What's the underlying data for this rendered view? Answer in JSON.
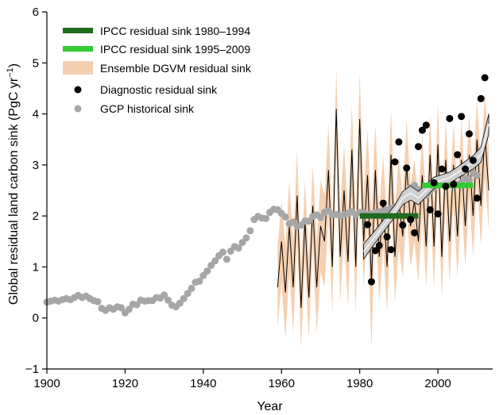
{
  "chart_data": {
    "type": "line",
    "xlabel": "Year",
    "ylabel": "Global residual land carbon sink (PgC yr",
    "ylabel_sup": "−1",
    "ylabel_suffix": ")",
    "xlim": [
      1900,
      2014
    ],
    "ylim": [
      -1,
      6
    ],
    "xticks": [
      1900,
      1920,
      1940,
      1960,
      1980,
      2000
    ],
    "yticks": [
      -1,
      0,
      1,
      2,
      3,
      4,
      5,
      6
    ],
    "ytick_labels": [
      "−1",
      "0",
      "1",
      "2",
      "3",
      "4",
      "5",
      "6"
    ],
    "legend_position": "top-left",
    "colors": {
      "ipcc_1980": "#1f6b1f",
      "ipcc_1995": "#33cc33",
      "ensemble_band": "#f5d0b0",
      "ensemble_line": "#000000",
      "diagnostic": "#000000",
      "gcp": "#a6a6a6",
      "spline_band": "#cfcfcf",
      "spline_line": "#ffffff"
    },
    "legend": [
      {
        "key": "ipcc_1980",
        "label": "IPCC residual sink 1980–1994"
      },
      {
        "key": "ipcc_1995",
        "label": "IPCC residual sink 1995–2009"
      },
      {
        "key": "ensemble",
        "label": "Ensemble DGVM residual sink"
      },
      {
        "key": "diagnostic",
        "label": "Diagnostic residual sink"
      },
      {
        "key": "gcp",
        "label": "GCP historical sink"
      }
    ],
    "ipcc_segments": [
      {
        "key": "ipcc_1980",
        "x": [
          1980,
          1995
        ],
        "y": 2.0
      },
      {
        "key": "ipcc_1995",
        "x": [
          1996,
          2009
        ],
        "y": 2.6
      }
    ],
    "gcp_historical": {
      "x": [
        1900,
        1901,
        1902,
        1903,
        1904,
        1905,
        1906,
        1907,
        1908,
        1909,
        1910,
        1911,
        1912,
        1913,
        1914,
        1915,
        1916,
        1917,
        1918,
        1919,
        1920,
        1921,
        1922,
        1923,
        1924,
        1925,
        1926,
        1927,
        1928,
        1929,
        1930,
        1931,
        1932,
        1933,
        1934,
        1935,
        1936,
        1937,
        1938,
        1939,
        1940,
        1941,
        1942,
        1943,
        1944,
        1945,
        1946,
        1947,
        1948,
        1949,
        1950,
        1951,
        1952,
        1953,
        1954,
        1955,
        1956,
        1957,
        1958,
        1959,
        1960,
        1961,
        1962,
        1963,
        1964,
        1965,
        1966,
        1967,
        1968,
        1969,
        1970,
        1971,
        1972,
        1973,
        1974,
        1975,
        1976,
        1977,
        1978,
        1979,
        1980,
        1981,
        1982,
        1983,
        1984,
        1985,
        1986,
        1987,
        1988,
        1989,
        1990,
        1991,
        1992,
        1993,
        1994,
        1995,
        1996,
        1997,
        1998,
        1999,
        2000,
        2001,
        2002,
        2003,
        2004,
        2005,
        2006,
        2007,
        2008,
        2009,
        2010
      ],
      "y": [
        0.31,
        0.33,
        0.35,
        0.33,
        0.36,
        0.38,
        0.36,
        0.4,
        0.44,
        0.4,
        0.43,
        0.38,
        0.34,
        0.32,
        0.19,
        0.15,
        0.2,
        0.17,
        0.22,
        0.2,
        0.1,
        0.17,
        0.27,
        0.26,
        0.35,
        0.33,
        0.34,
        0.34,
        0.4,
        0.39,
        0.45,
        0.35,
        0.25,
        0.22,
        0.29,
        0.38,
        0.48,
        0.58,
        0.7,
        0.72,
        0.83,
        0.92,
        1.03,
        1.12,
        1.22,
        1.29,
        1.15,
        1.31,
        1.4,
        1.37,
        1.48,
        1.57,
        1.71,
        1.93,
        1.99,
        1.96,
        1.95,
        2.07,
        2.13,
        2.12,
        2.05,
        1.98,
        1.85,
        1.88,
        1.8,
        1.82,
        1.9,
        1.9,
        1.99,
        2.02,
        1.97,
        2.07,
        2.1,
        2.02,
        2.03,
        2.0,
        2.03,
        2.05,
        2.08,
        2.03,
        2.07,
        2.06,
        2.03,
        2.04,
        2.06,
        2.08,
        2.1,
        2.12,
        2.15,
        2.18,
        2.22,
        2.3,
        2.45,
        2.55,
        2.6,
        2.52,
        2.45,
        2.4,
        2.48,
        2.55,
        2.62,
        2.63,
        2.6,
        2.7,
        2.6,
        2.62,
        2.65,
        2.74,
        2.7,
        2.84,
        2.8
      ]
    },
    "ensemble_dgvm": {
      "x": [
        1959,
        1960,
        1961,
        1962,
        1963,
        1964,
        1965,
        1966,
        1967,
        1968,
        1969,
        1970,
        1971,
        1972,
        1973,
        1974,
        1975,
        1976,
        1977,
        1978,
        1979,
        1980,
        1981,
        1982,
        1983,
        1984,
        1985,
        1986,
        1987,
        1988,
        1989,
        1990,
        1991,
        1992,
        1993,
        1994,
        1995,
        1996,
        1997,
        1998,
        1999,
        2000,
        2001,
        2002,
        2003,
        2004,
        2005,
        2006,
        2007,
        2008,
        2009,
        2010,
        2011,
        2012,
        2013
      ],
      "y": [
        0.6,
        1.5,
        0.5,
        1.8,
        0.6,
        2.4,
        0.2,
        1.9,
        0.4,
        2.2,
        0.6,
        1.8,
        1.5,
        2.9,
        1.0,
        4.1,
        1.2,
        2.5,
        1.1,
        3.3,
        1.0,
        3.9,
        1.5,
        2.8,
        0.7,
        2.9,
        1.2,
        2.3,
        1.0,
        3.2,
        1.2,
        2.3,
        1.6,
        3.0,
        1.8,
        2.3,
        1.5,
        2.8,
        1.4,
        3.2,
        1.4,
        3.4,
        1.2,
        3.1,
        1.5,
        3.0,
        1.6,
        3.1,
        1.8,
        3.2,
        2.0,
        3.5,
        2.2,
        3.6,
        2.5
      ],
      "spread": [
        0.8,
        0.8,
        0.9,
        0.9,
        0.9,
        0.9,
        0.8,
        0.8,
        0.8,
        0.8,
        0.9,
        0.9,
        0.9,
        0.9,
        0.9,
        0.8,
        0.9,
        0.9,
        0.9,
        0.9,
        0.9,
        0.9,
        0.9,
        0.9,
        1.3,
        0.9,
        0.9,
        0.9,
        0.9,
        0.9,
        0.9,
        0.9,
        0.8,
        0.9,
        0.8,
        0.8,
        0.8,
        0.8,
        0.8,
        0.8,
        0.8,
        0.8,
        0.8,
        0.8,
        0.8,
        0.8,
        0.8,
        0.8,
        0.8,
        0.8,
        0.8,
        0.8,
        0.8,
        0.8,
        0.8
      ]
    },
    "spline_fit": {
      "x": [
        1981,
        1983,
        1985,
        1987,
        1989,
        1991,
        1993,
        1995,
        1997,
        1999,
        2001,
        2003,
        2005,
        2007,
        2009,
        2011,
        2013
      ],
      "y": [
        1.3,
        1.5,
        1.7,
        1.9,
        2.1,
        2.35,
        2.45,
        2.35,
        2.5,
        2.65,
        2.7,
        2.75,
        2.85,
        2.95,
        3.05,
        3.2,
        3.8
      ],
      "halfwidth": [
        0.15,
        0.13,
        0.12,
        0.12,
        0.12,
        0.13,
        0.14,
        0.13,
        0.12,
        0.11,
        0.11,
        0.11,
        0.11,
        0.12,
        0.13,
        0.15,
        0.2
      ]
    },
    "diagnostic_residual": {
      "x": [
        1982,
        1983,
        1984,
        1985,
        1986,
        1987,
        1988,
        1989,
        1990,
        1991,
        1992,
        1993,
        1994,
        1995,
        1996,
        1997,
        1998,
        1999,
        2000,
        2001,
        2002,
        2003,
        2004,
        2005,
        2006,
        2007,
        2008,
        2009,
        2010,
        2011,
        2012
      ],
      "y": [
        1.83,
        0.71,
        1.32,
        1.42,
        2.25,
        1.59,
        1.34,
        3.06,
        3.45,
        1.82,
        2.94,
        1.93,
        1.67,
        3.36,
        3.68,
        3.78,
        2.12,
        2.65,
        2.04,
        2.92,
        2.58,
        3.91,
        2.62,
        3.2,
        3.95,
        2.92,
        3.61,
        3.09,
        2.35,
        4.3,
        4.71
      ]
    }
  }
}
